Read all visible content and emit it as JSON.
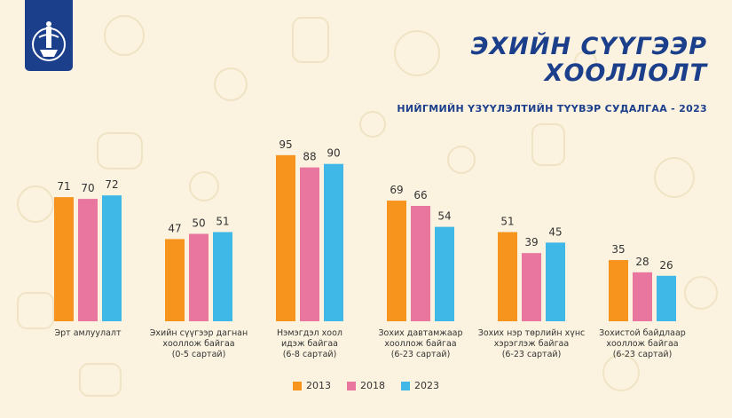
{
  "header": {
    "title_line1": "ЭХИЙН СҮҮГЭЭР",
    "title_line2": "ХООЛЛОЛТ",
    "subtitle": "НИЙГМИЙН ҮЗҮҮЛЭЛТИЙН ТҮҮВЭР СУДАЛГАА - 2023"
  },
  "logo": {
    "icon": "state-emblem-icon",
    "color": "#1c3f8c"
  },
  "colors": {
    "background": "#fbf3df",
    "brand": "#1c3f8c",
    "s2013": "#f7941d",
    "s2018": "#e8769f",
    "s2023": "#3fb8e8"
  },
  "chart_data": {
    "type": "bar",
    "categories": [
      [
        "Эрт амлуулалт"
      ],
      [
        "Эхийн сүүгээр дагнан",
        "хооллож байгаа",
        "(0-5 сартай)"
      ],
      [
        "Нэмэгдэл хоол",
        "идэж байгаа",
        "(6-8 сартай)"
      ],
      [
        "Зохих давтамжаар",
        "хооллож байгаа",
        "(6-23 сартай)"
      ],
      [
        "Зохих нэр төрлийн хүнс",
        "хэрэглэж байгаа",
        "(6-23 сартай)"
      ],
      [
        "Зохистой байдлаар",
        "хооллож байгаа",
        "(6-23 сартай)"
      ]
    ],
    "series": [
      {
        "name": "2013",
        "color": "#f7941d",
        "values": [
          71,
          47,
          95,
          69,
          51,
          35
        ]
      },
      {
        "name": "2018",
        "color": "#e8769f",
        "values": [
          70,
          50,
          88,
          66,
          39,
          28
        ]
      },
      {
        "name": "2023",
        "color": "#3fb8e8",
        "values": [
          72,
          51,
          90,
          54,
          45,
          26
        ]
      }
    ],
    "ylim": [
      0,
      100
    ],
    "grid": false,
    "legend_position": "bottom-center",
    "xlabel": "",
    "ylabel": ""
  }
}
